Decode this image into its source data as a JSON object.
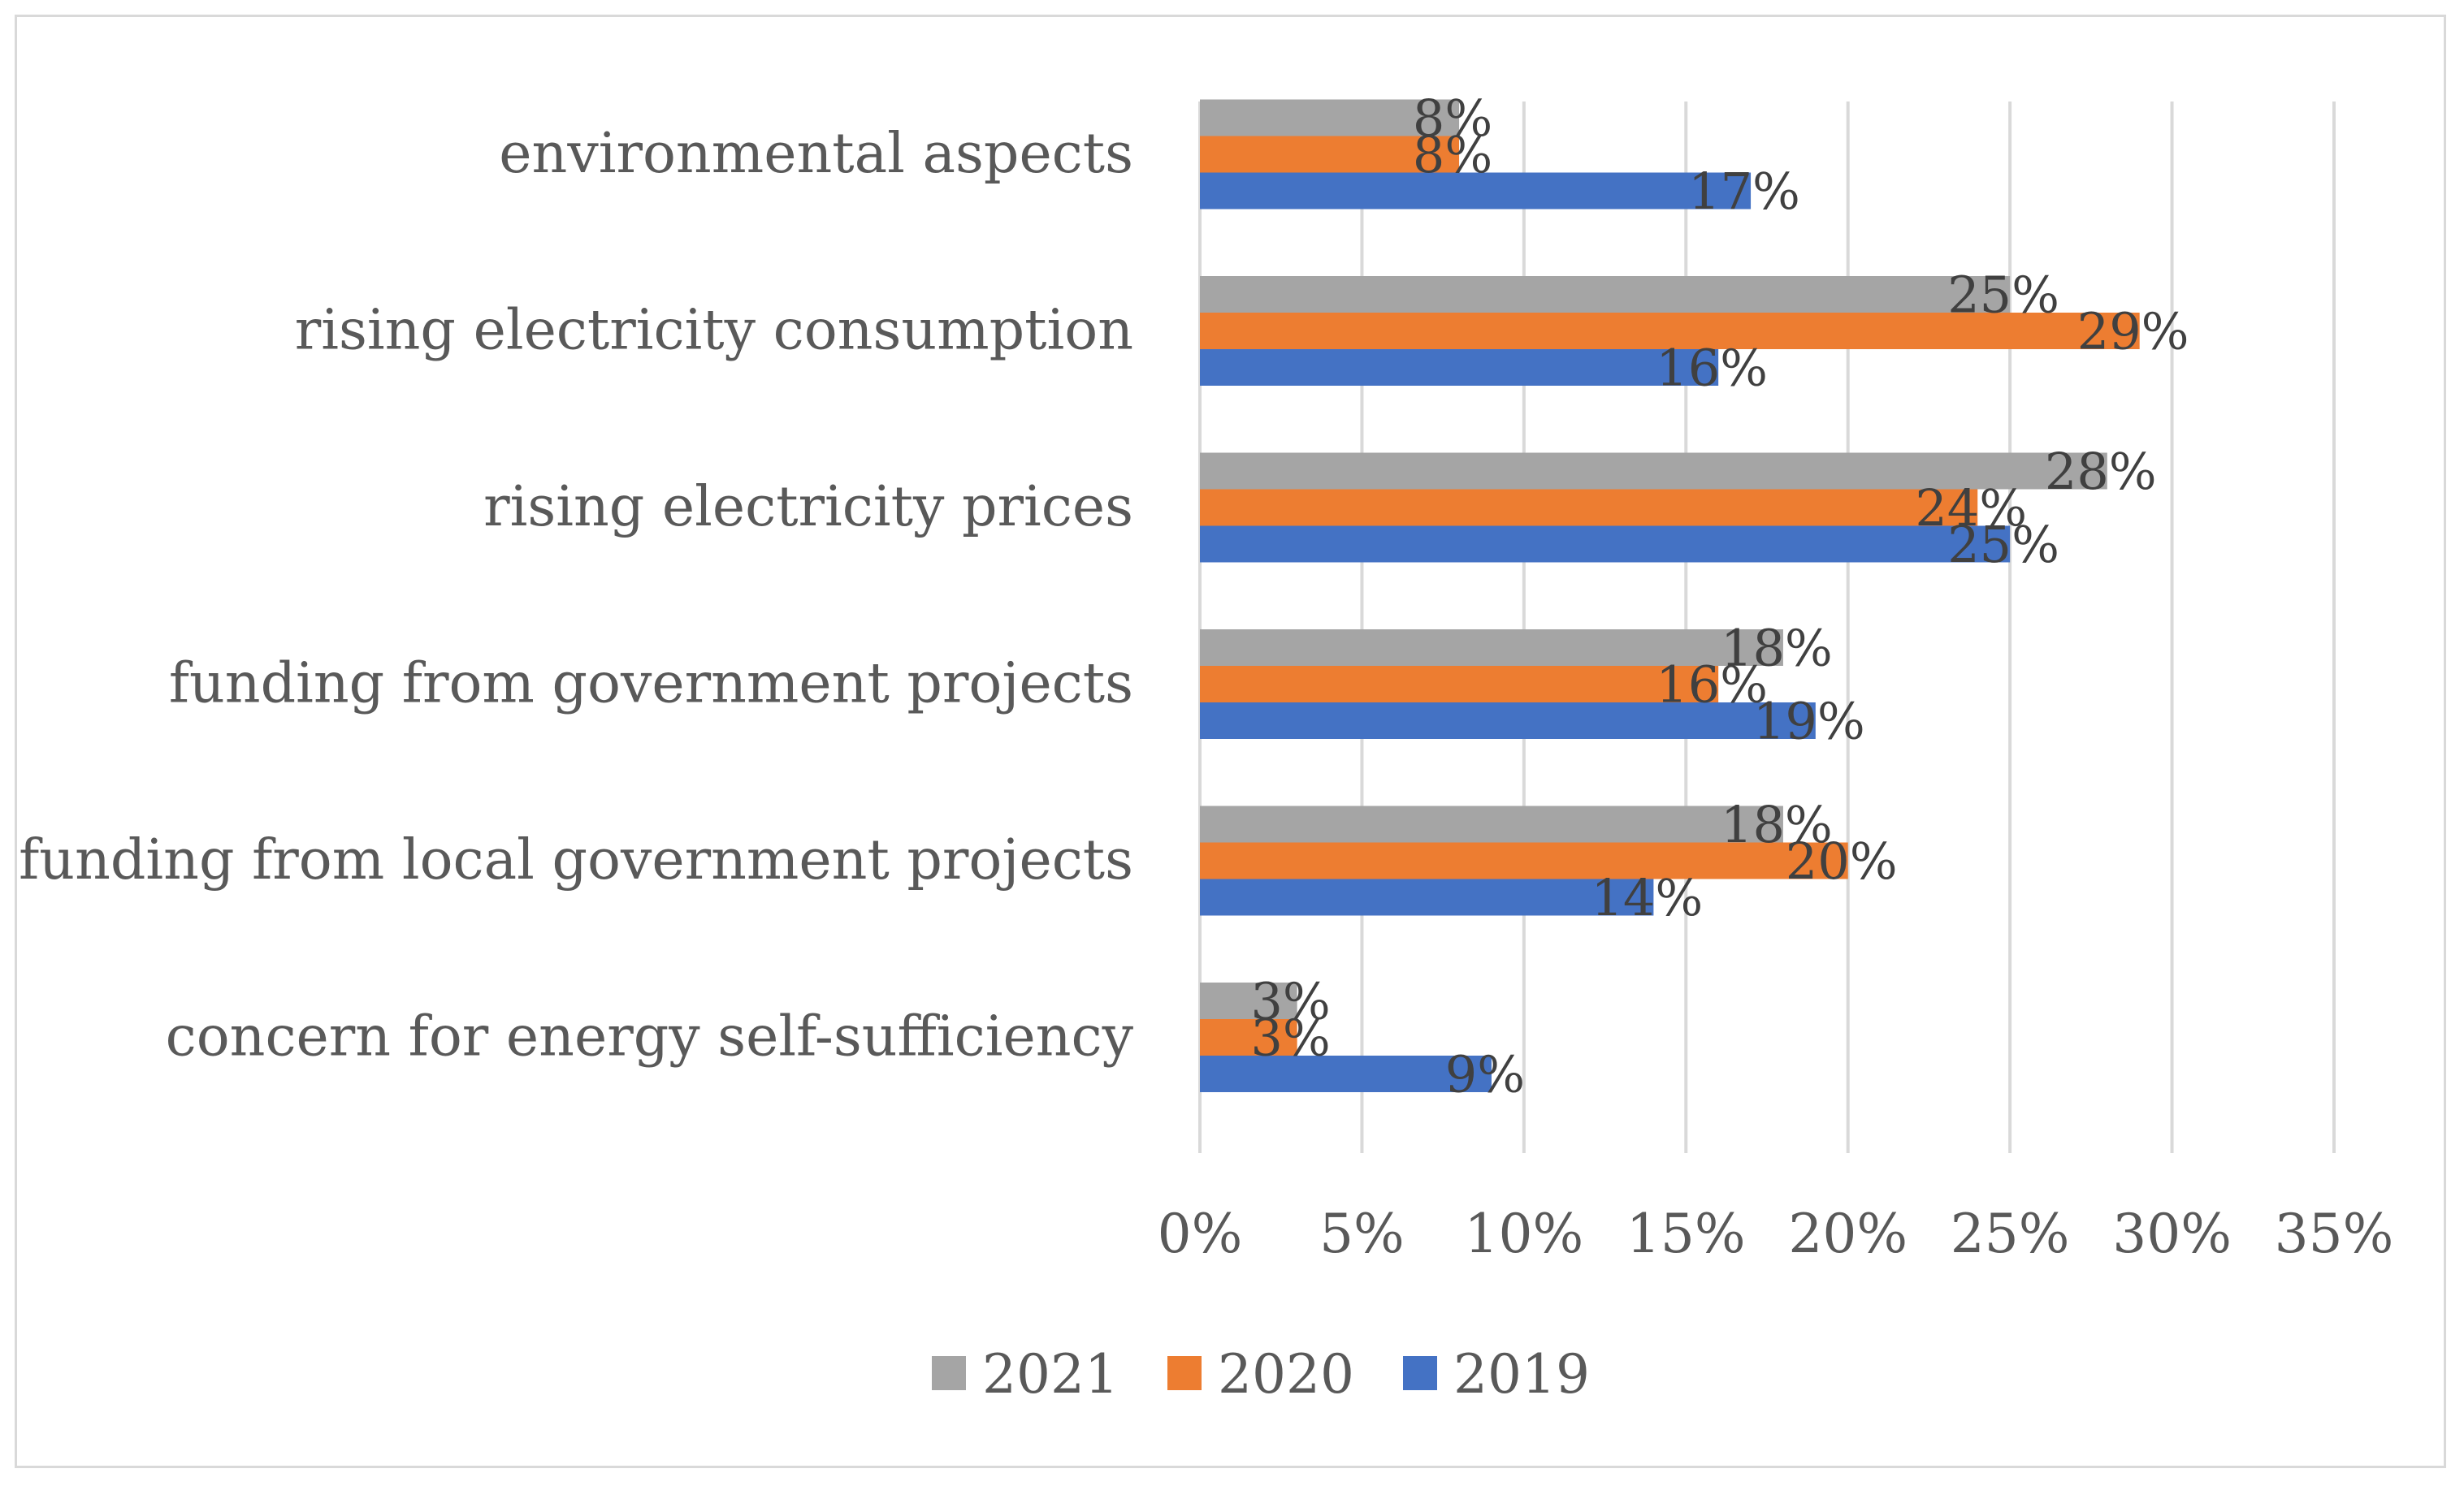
{
  "chart_data": {
    "type": "bar",
    "orientation": "horizontal",
    "categories": [
      "environmental aspects",
      "rising electricity consumption",
      "rising electricity prices",
      "funding from government projects",
      "funding from local government projects",
      "concern for energy self-sufficiency"
    ],
    "series": [
      {
        "name": "2021",
        "color": "#a5a5a5",
        "values": [
          8,
          25,
          28,
          18,
          18,
          3
        ]
      },
      {
        "name": "2020",
        "color": "#ed7d31",
        "values": [
          8,
          29,
          24,
          16,
          20,
          3
        ]
      },
      {
        "name": "2019",
        "color": "#4472c4",
        "values": [
          17,
          16,
          25,
          19,
          14,
          9
        ]
      }
    ],
    "xlim": [
      0,
      35
    ],
    "xticks": [
      0,
      5,
      10,
      15,
      20,
      25,
      30,
      35
    ],
    "tick_suffix": "%",
    "grid": true,
    "legend": "bottom",
    "title": "",
    "xlabel": "",
    "ylabel": ""
  }
}
